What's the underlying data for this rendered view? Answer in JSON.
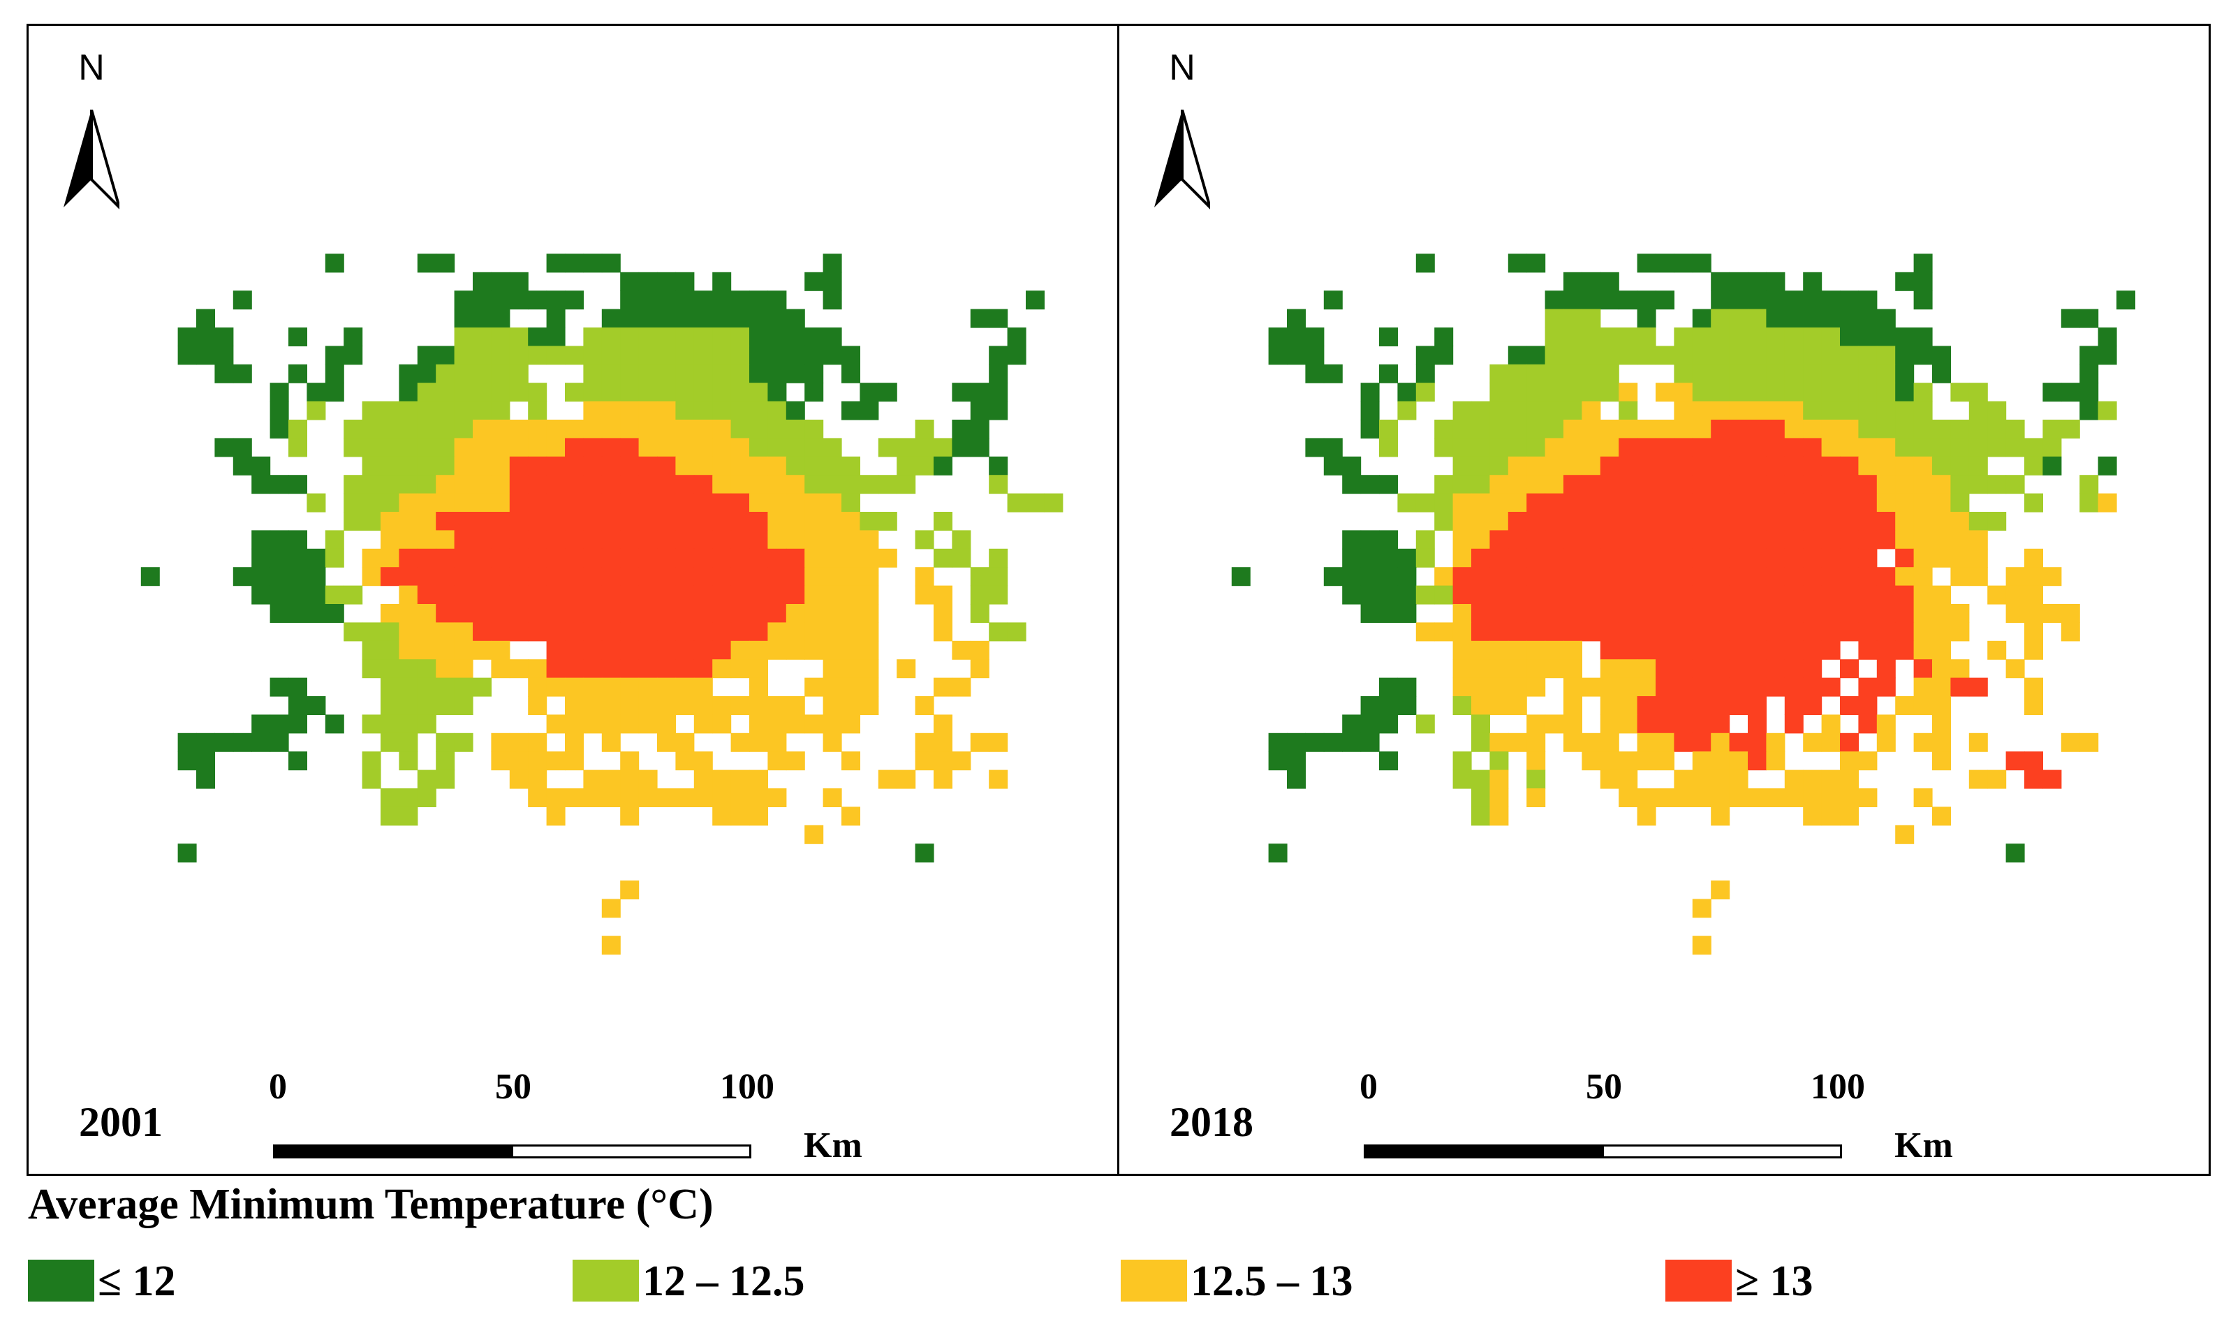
{
  "legend": {
    "title": "Average Minimum Temperature (°C)",
    "classes": [
      {
        "key": "A",
        "label": "≤ 12",
        "color": "#1e7a1e"
      },
      {
        "key": "B",
        "label": "12 – 12.5",
        "color": "#a3cc29"
      },
      {
        "key": "C",
        "label": "12.5 – 13",
        "color": "#fcc623"
      },
      {
        "key": "D",
        "label": "≥ 13",
        "color": "#fc4020"
      }
    ]
  },
  "north_arrow": {
    "label": "N"
  },
  "scale_bar": {
    "ticks": [
      "0",
      "50",
      "100"
    ],
    "unit": "Km"
  },
  "maps": [
    {
      "year": "2001",
      "grid": [
        "....................................................",
        "............A....AA.....AAAA...........A............",
        "....................AAA.....AAAA.A....AA............",
        ".......A...........AAAAAAA..AAAAAAAAA..A..........A.",
        ".....A.............AAA..A..AAAAAAAAAAA.........AA...",
        "....AAA...A..A.....BBBBAA.BBBBBBBBBAAAAA.........A..",
        "....AAA.....AA...AABBBBBBBBBBBBBBBBAAAAAA.......AA..",
        "......AA..A.A...AABBBBB...BBBBBBBBBAAAA.A.......A...",
        ".........A.AA...ABBBBBBB.BBBBBBBBBBBA.A..AA...AAA...",
        ".........A.B..BBBBBBBB.B..CCCCCBBBBBBA..AA.....AA...",
        ".........AB..BBBBBBBCCCCCCCCCCCCCCBBBBB.....B.AA....",
        "......AA..B..BBBBBBCCCCCCDDDDCCCCCCBBBBB..BBBBAA....",
        ".......AA.....BBBBBCCCDDDDDDDDDCCCCCCBBBB..BBA..A...",
        "........AAA..BBBBBCCCCDDDDDDDDDDDCCCCCBBBBBB....B...",
        "...........B.BBBCCCCCCDDDDDDDDDDDDDCCCCCB........BBB",
        ".............BBCCCDDDDDDDDDDDDDDDDDDCCCCCBB..B......",
        "........AAA.B..CCCCDDDDDDDDDDDDDDDDDCCCCCC..B.B.....",
        "........AAAAB.CCDDDDDDDDDDDDDDDDDDDDDDCCCCC..BB.B...",
        "..A....AAAAA..CDDDDDDDDDDDDDDDDDDDDDDDCCCC..C..BB...",
        "........AAAABB..CDDDDDDDDDDDDDDDDDDDDDCCCC..CC.BB...",
        ".........AAAA..CCCDDDDDDDDDDDDDDDDDDDCCCCC...C.B....",
        ".............BBBCCCCDDDDDDDDDDDDDDDDCCCCCC...C..BB..",
        "..............BBCCCCCC..DDDDDDDDDDCCCCCCCC....CC....",
        "..............BBBBCC.CCCDDDDDDDDDCCC...CCC.C...C....",
        ".........AA....BBBBBB..CCCCCCCCCC..C..CCCC...CC.....",
        "..........AA...BBBBB...C.CCCCCCCCCCCCC.CCC..C.......",
        "........AAA.A.BBBB......CCCCCCC.CC.CCCCCC....C......",
        "....AAAAAA.....BB.BB.CCC.C.C..CC..CCC..C....CC.CC...",
        "....AA....A...B.B.B..CCCCC..C..CC...CC..C...CCC.....",
        ".....A........B..BB...CC..CCCC..CCCC......CC.C..C...",
        "...............BBB.....CCCCCCCCCCCCCC..C............",
        "...............BB.......C...C....CCC....C...........",
        "......................................C.............",
        "....A.......................................A.......",
        "....................................................",
        "............................C.......................",
        "...........................C........................",
        "....................................................",
        "...........................C........................",
        "....................................................",
        "...................................................."
      ]
    },
    {
      "year": "2018",
      "grid": [
        "....................................................",
        "............A....AA.....AAAA...........A............",
        "....................AAA.....AAAA.A....AA............",
        ".......A...........AAAAAAA..AAAAAAAAA..A..........A.",
        ".....A.............BBB..A..ABBBAAAAAAA.........AA...",
        "....AAA...A..A.....BBBBBB.BBBBBBBBBAAAAA.........A..",
        "....AAA.....AA...AABBBBBBBBBBBBBBBBBBBAAA.......AA..",
        "......AA..A.A...BBBBBBB...BBBBBBBBBBBBA.A.......A...",
        ".........A.AB...BBBBBBBC.CCBBBBBBBBBBBAB.BB...AAA...",
        ".........A.B..BBBBBBBC.B..CCCCCCCBBBBBBB..BB....AB..",
        ".........AB..BBBBBBBCCCCCCCCDDDDCCCCBBBBBBBBB.BB....",
        "......AA..B..BBBBBBCCCCDDDDDDDDDDDCCCCBBBBBBBBB.....",
        ".......AA.....BBBCCCCCDDDDDDDDDDDDDDCCCCBBB..BA..A..",
        "........AAA..BBBCCCCDDDDDDDDDDDDDDDDDCCCCBBBB...B...",
        "...........BBBCCCCDDDDDDDDDDDDDDDDDDDCCCCB...B..BC..",
        ".............BCCCDDDDDDDDDDDDDDDDDDDDDCCCCBB........",
        "........AAA.B.CCDDDDDDDDDDDDDDDDDDDDDDCCCCC.........",
        "........AAAAB.CDDDDDDDDDDDDDDDDDDDDDD.DCCCC..C......",
        "..A....AAAAA.CDDDDDDDDDDDDDDDDDDDDDDDDCC.CC.CCC.....",
        "........AAAABBDDDDDDDDDDDDDDDDDDDDDDDDDCC..CCC......",
        ".........AAA..CDDDDDDDDDDDDDDDDDDDDDDDDCCC..CCCC....",
        "............CCCDDDDDDDDDDDDDDDDDDDDDDDDCCC...C.C....",
        "..............CCCCCCC.DDDDDDDDDDDDD.DDDCC..C.C......",
        "..............CCCCCCC.CCCDDDDDDDDD.D.D.DCC..C.......",
        "..........AA..CCCCC.CCCCCDDDDDDDDDD.DD.CCDD..C......",
        ".........AAA..BCCC..C.CCDDDDDDD.DD.DD.CCC....C......",
        "........AAA.B..B..CCC.CCDDDDD.D.D.C.DC..C...........",
        "....AAAAAA.....BCCC.CCC.CCDDCDDC.CCD.C.CC.C....CC...",
        "....AA....A...B.B.C..CCCCC.CCCDC...CC...C...DD......",
        ".....A........BBC.B...CC..CCCC..CCCC......CC.DD.....",
        "...............BC.C....CCCCCCCCCCCCCC..C............",
        "...............BC.......C...C....CCC....C...........",
        "......................................C.............",
        "....A.......................................A.......",
        "....................................................",
        "............................C.......................",
        "...........................C........................",
        "....................................................",
        "...........................C........................",
        "....................................................",
        "...................................................."
      ]
    }
  ]
}
